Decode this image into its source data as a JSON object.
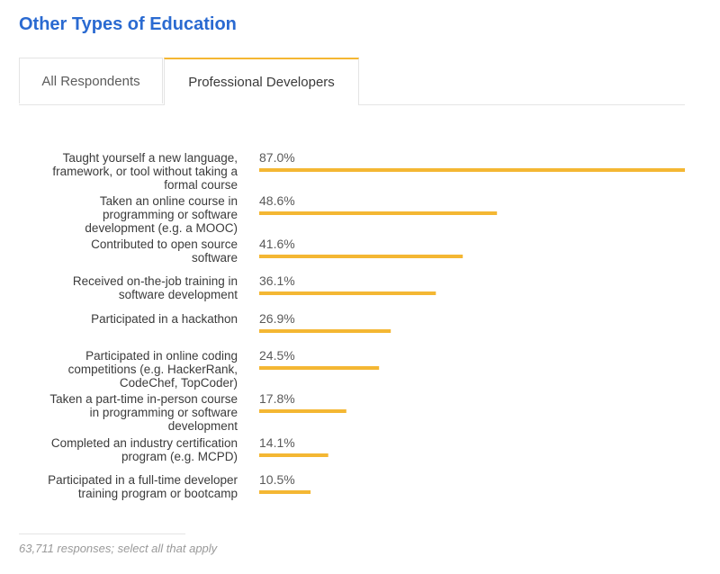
{
  "title": "Other Types of Education",
  "tabs": [
    {
      "label": "All Respondents",
      "selected": false
    },
    {
      "label": "Professional Developers",
      "selected": true
    }
  ],
  "colors": {
    "title": "#2a6ad1",
    "bar": "#f4b733",
    "tab_accent": "#f4b733"
  },
  "footnote": "63,711 responses; select all that apply",
  "chart_data": {
    "type": "bar",
    "orientation": "horizontal",
    "unit": "%",
    "grid": false,
    "categories": [
      [
        "Taught yourself a new language,",
        "framework, or tool without taking a",
        "formal course"
      ],
      [
        "Taken an online course in",
        "programming or software",
        "development (e.g. a MOOC)"
      ],
      [
        "Contributed to open source",
        "software"
      ],
      [
        "Received on-the-job training in",
        "software development"
      ],
      [
        "Participated in a hackathon"
      ],
      [
        "Participated in online coding",
        "competitions (e.g. HackerRank,",
        "CodeChef, TopCoder)"
      ],
      [
        "Taken a part-time in-person course",
        "in programming or software",
        "development"
      ],
      [
        "Completed an industry certification",
        "program (e.g. MCPD)"
      ],
      [
        "Participated in a full-time developer",
        "training program or bootcamp"
      ]
    ],
    "values": [
      87.0,
      48.6,
      41.6,
      36.1,
      26.9,
      24.5,
      17.8,
      14.1,
      10.5
    ],
    "value_labels": [
      "87.0%",
      "48.6%",
      "41.6%",
      "36.1%",
      "26.9%",
      "24.5%",
      "17.8%",
      "14.1%",
      "10.5%"
    ],
    "xlim": [
      0,
      87.0
    ]
  }
}
